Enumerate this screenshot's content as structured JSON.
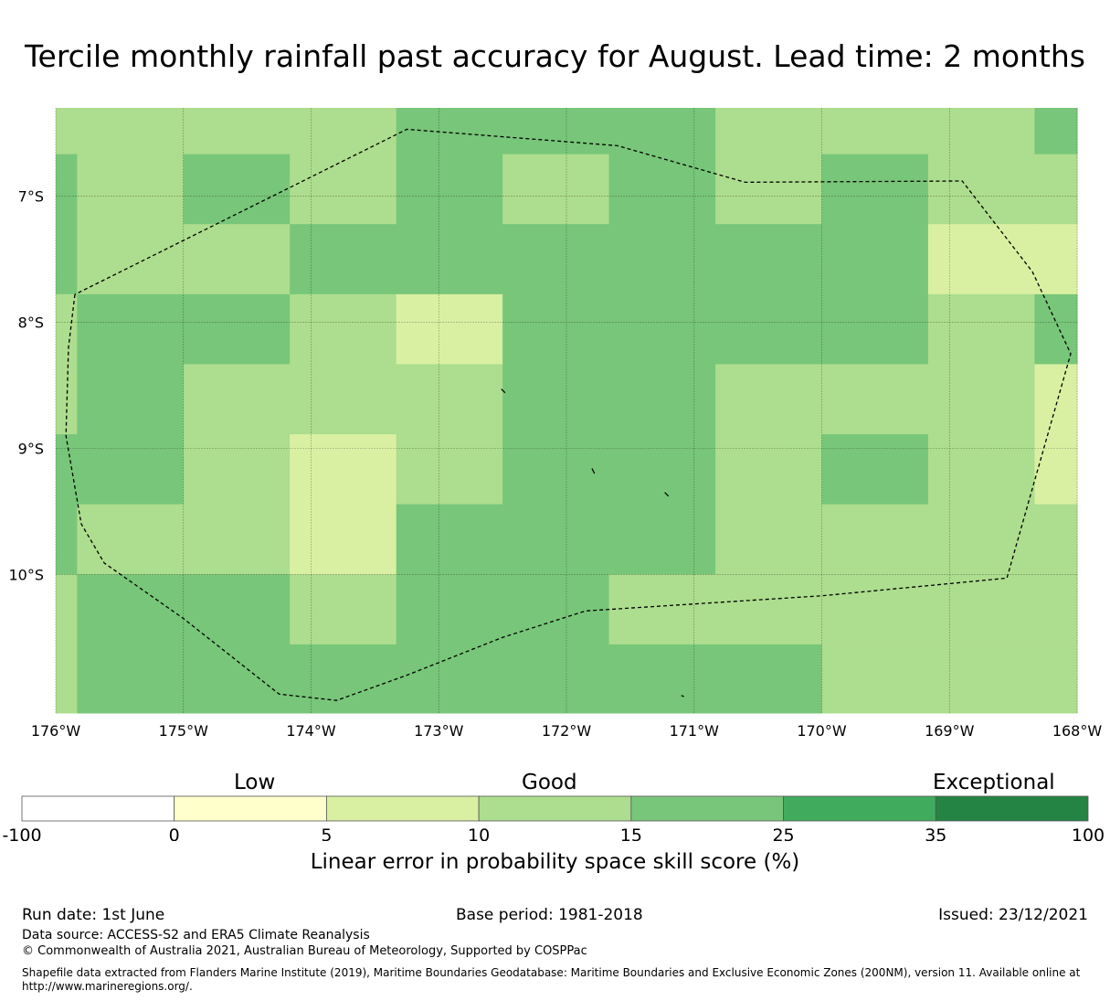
{
  "title": "Tercile monthly rainfall past accuracy for August. Lead time: 2 months",
  "map": {
    "lon_range": [
      -176,
      -168
    ],
    "lat_range": [
      -11.1,
      -6.3
    ],
    "lon_ticks": [
      -176,
      -175,
      -174,
      -173,
      -172,
      -171,
      -170,
      -169,
      -168
    ],
    "lon_tick_labels": [
      "176°W",
      "175°W",
      "174°W",
      "173°W",
      "172°W",
      "171°W",
      "170°W",
      "169°W",
      "168°W"
    ],
    "lat_ticks": [
      -7,
      -8,
      -9,
      -10
    ],
    "lat_tick_labels": [
      "7°S",
      "8°S",
      "9°S",
      "10°S"
    ],
    "grid": true,
    "grid_lon_edges": [
      -176,
      -175.833,
      -175,
      -174.167,
      -173.333,
      -172.5,
      -171.667,
      -170.833,
      -170,
      -169.167,
      -168.333,
      -168
    ],
    "grid_lat_edges": [
      -6.3,
      -6.667,
      -7.222,
      -7.778,
      -8.333,
      -8.889,
      -9.444,
      -10.0,
      -10.556,
      -11.1
    ],
    "skill_class_grid": [
      [
        3,
        3,
        3,
        3,
        4,
        4,
        4,
        3,
        3,
        3,
        4
      ],
      [
        4,
        3,
        4,
        3,
        4,
        3,
        4,
        3,
        4,
        3,
        3
      ],
      [
        4,
        3,
        3,
        4,
        4,
        4,
        4,
        4,
        4,
        2,
        2
      ],
      [
        3,
        4,
        4,
        3,
        2,
        4,
        4,
        4,
        4,
        3,
        4
      ],
      [
        3,
        4,
        3,
        3,
        3,
        4,
        4,
        3,
        3,
        3,
        2
      ],
      [
        4,
        4,
        3,
        2,
        3,
        4,
        4,
        3,
        4,
        3,
        2
      ],
      [
        4,
        3,
        3,
        2,
        4,
        4,
        4,
        3,
        3,
        3,
        3
      ],
      [
        3,
        4,
        4,
        3,
        4,
        4,
        3,
        3,
        3,
        3,
        3
      ],
      [
        3,
        4,
        4,
        4,
        4,
        4,
        4,
        4,
        3,
        3,
        3
      ]
    ],
    "eez_boundary_lonlat": [
      [
        -175.85,
        -7.78
      ],
      [
        -175.9,
        -8.2
      ],
      [
        -175.92,
        -8.9
      ],
      [
        -175.8,
        -9.6
      ],
      [
        -175.62,
        -9.91
      ],
      [
        -175.0,
        -10.35
      ],
      [
        -174.25,
        -10.95
      ],
      [
        -173.8,
        -11.0
      ],
      [
        -173.25,
        -10.8
      ],
      [
        -172.5,
        -10.5
      ],
      [
        -171.85,
        -10.29
      ],
      [
        -170.0,
        -10.17
      ],
      [
        -168.55,
        -10.03
      ],
      [
        -168.05,
        -8.25
      ],
      [
        -168.35,
        -7.6
      ],
      [
        -168.9,
        -6.88
      ],
      [
        -170.6,
        -6.89
      ],
      [
        -171.6,
        -6.6
      ],
      [
        -173.25,
        -6.47
      ],
      [
        -175.85,
        -7.78
      ]
    ],
    "islands_lonlat": [
      [
        [
          -172.51,
          -8.53
        ],
        [
          -172.48,
          -8.56
        ]
      ],
      [
        [
          -171.8,
          -9.16
        ],
        [
          -171.78,
          -9.2
        ]
      ],
      [
        [
          -171.23,
          -9.35
        ],
        [
          -171.2,
          -9.38
        ]
      ],
      [
        [
          -171.1,
          -10.96
        ],
        [
          -171.08,
          -10.97
        ]
      ]
    ]
  },
  "colorbar": {
    "boundaries": [
      -100,
      0,
      5,
      10,
      15,
      25,
      35,
      100
    ],
    "tick_labels": [
      "-100",
      "0",
      "5",
      "10",
      "15",
      "25",
      "35",
      "100"
    ],
    "colors": [
      "#ffffff",
      "#ffffcc",
      "#d9f0a3",
      "#addd8e",
      "#78c679",
      "#41ab5d",
      "#238443"
    ],
    "categories": [
      "Low",
      "Good",
      "Exceptional"
    ],
    "label": "Linear error in probability space skill score (%)"
  },
  "footer": {
    "run_date": "Run date: 1st June",
    "base_period": "Base period: 1981-2018",
    "issued": "Issued: 23/12/2021",
    "data_source": "Data source: ACCESS-S2 and ERA5 Climate Reanalysis",
    "copyright": "© Commonwealth of Australia 2021, Australian Bureau of Meteorology, Supported by COSPPac",
    "shapefile_line1": "Shapefile data extracted from Flanders Marine Institute (2019), Maritime Boundaries Geodatabase: Maritime Boundaries and Exclusive Economic Zones (200NM), version 11. Available online at",
    "shapefile_line2": "http://www.marineregions.org/."
  }
}
